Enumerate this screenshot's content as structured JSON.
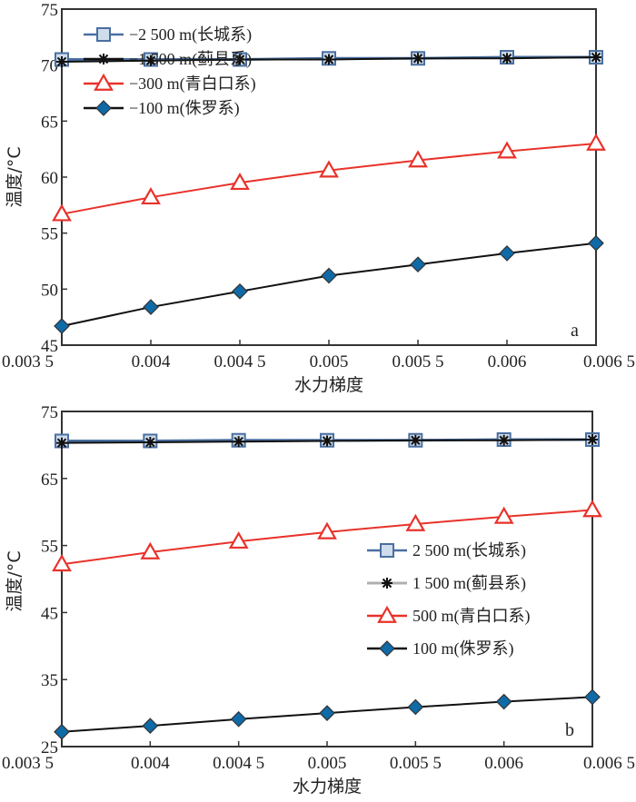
{
  "chart_data": [
    {
      "type": "line",
      "panel_label": "a",
      "xlabel": "水力梯度",
      "ylabel": "温度/°C",
      "x": [
        0.0035,
        0.004,
        0.0045,
        0.005,
        0.0055,
        0.006,
        0.0065
      ],
      "x_tick_labels": [
        "0.003 5",
        "0.004",
        "0.004 5",
        "0.005",
        "0.005 5",
        "0.006",
        "0.006 5"
      ],
      "xlim": [
        0.0035,
        0.0065
      ],
      "ylim": [
        45,
        75
      ],
      "y_ticks": [
        45,
        50,
        55,
        60,
        65,
        70,
        75
      ],
      "y_tick_labels": [
        "45",
        "50",
        "55",
        "60",
        "65",
        "70",
        "75"
      ],
      "legend_position": "upper-left",
      "series": [
        {
          "name": "−2 500 m(长城系)",
          "marker": "square",
          "color": "#4a6fa0",
          "values": [
            70.5,
            70.5,
            70.5,
            70.6,
            70.6,
            70.7,
            70.7
          ]
        },
        {
          "name": "−1 500 m(蓟县系)",
          "marker": "asterisk",
          "color": "#111111",
          "values": [
            70.3,
            70.4,
            70.5,
            70.5,
            70.6,
            70.6,
            70.7
          ]
        },
        {
          "name": "−300 m(青白口系)",
          "marker": "triangle",
          "color": "#e8322a",
          "values": [
            56.7,
            58.2,
            59.5,
            60.6,
            61.5,
            62.3,
            63.0
          ]
        },
        {
          "name": "−100 m(侏罗系)",
          "marker": "diamond",
          "color": "#111111",
          "marker_fill": "#0f6aa8",
          "values": [
            46.7,
            48.4,
            49.8,
            51.2,
            52.2,
            53.2,
            54.1
          ]
        }
      ]
    },
    {
      "type": "line",
      "panel_label": "b",
      "xlabel": "水力梯度",
      "ylabel": "温度/°C",
      "x": [
        0.0035,
        0.004,
        0.0045,
        0.005,
        0.0055,
        0.006,
        0.0065
      ],
      "x_tick_labels": [
        "0.003 5",
        "0.004",
        "0.004 5",
        "0.005",
        "0.005 5",
        "0.006",
        "0.006 5"
      ],
      "xlim": [
        0.0035,
        0.0065
      ],
      "ylim": [
        25,
        75
      ],
      "y_ticks": [
        25,
        35,
        45,
        55,
        65,
        75
      ],
      "y_tick_labels": [
        "25",
        "35",
        "45",
        "55",
        "65",
        "75"
      ],
      "legend_position": "center-right",
      "series": [
        {
          "name": "2 500 m(长城系)",
          "marker": "square",
          "color": "#4a6fa0",
          "values": [
            70.6,
            70.6,
            70.7,
            70.7,
            70.7,
            70.8,
            70.8
          ]
        },
        {
          "name": "1 500 m(蓟县系)",
          "marker": "asterisk",
          "color": "#111111",
          "legend_line_color": "#b0b0b0",
          "values": [
            70.3,
            70.4,
            70.5,
            70.6,
            70.7,
            70.7,
            70.8
          ]
        },
        {
          "name": "500 m(青白口系)",
          "marker": "triangle",
          "color": "#e8322a",
          "values": [
            52.2,
            54.0,
            55.6,
            57.0,
            58.2,
            59.3,
            60.3
          ]
        },
        {
          "name": "100 m(侏罗系)",
          "marker": "diamond",
          "color": "#111111",
          "marker_fill": "#0f6aa8",
          "values": [
            27.2,
            28.1,
            29.1,
            30.0,
            30.9,
            31.7,
            32.4
          ]
        }
      ]
    }
  ]
}
